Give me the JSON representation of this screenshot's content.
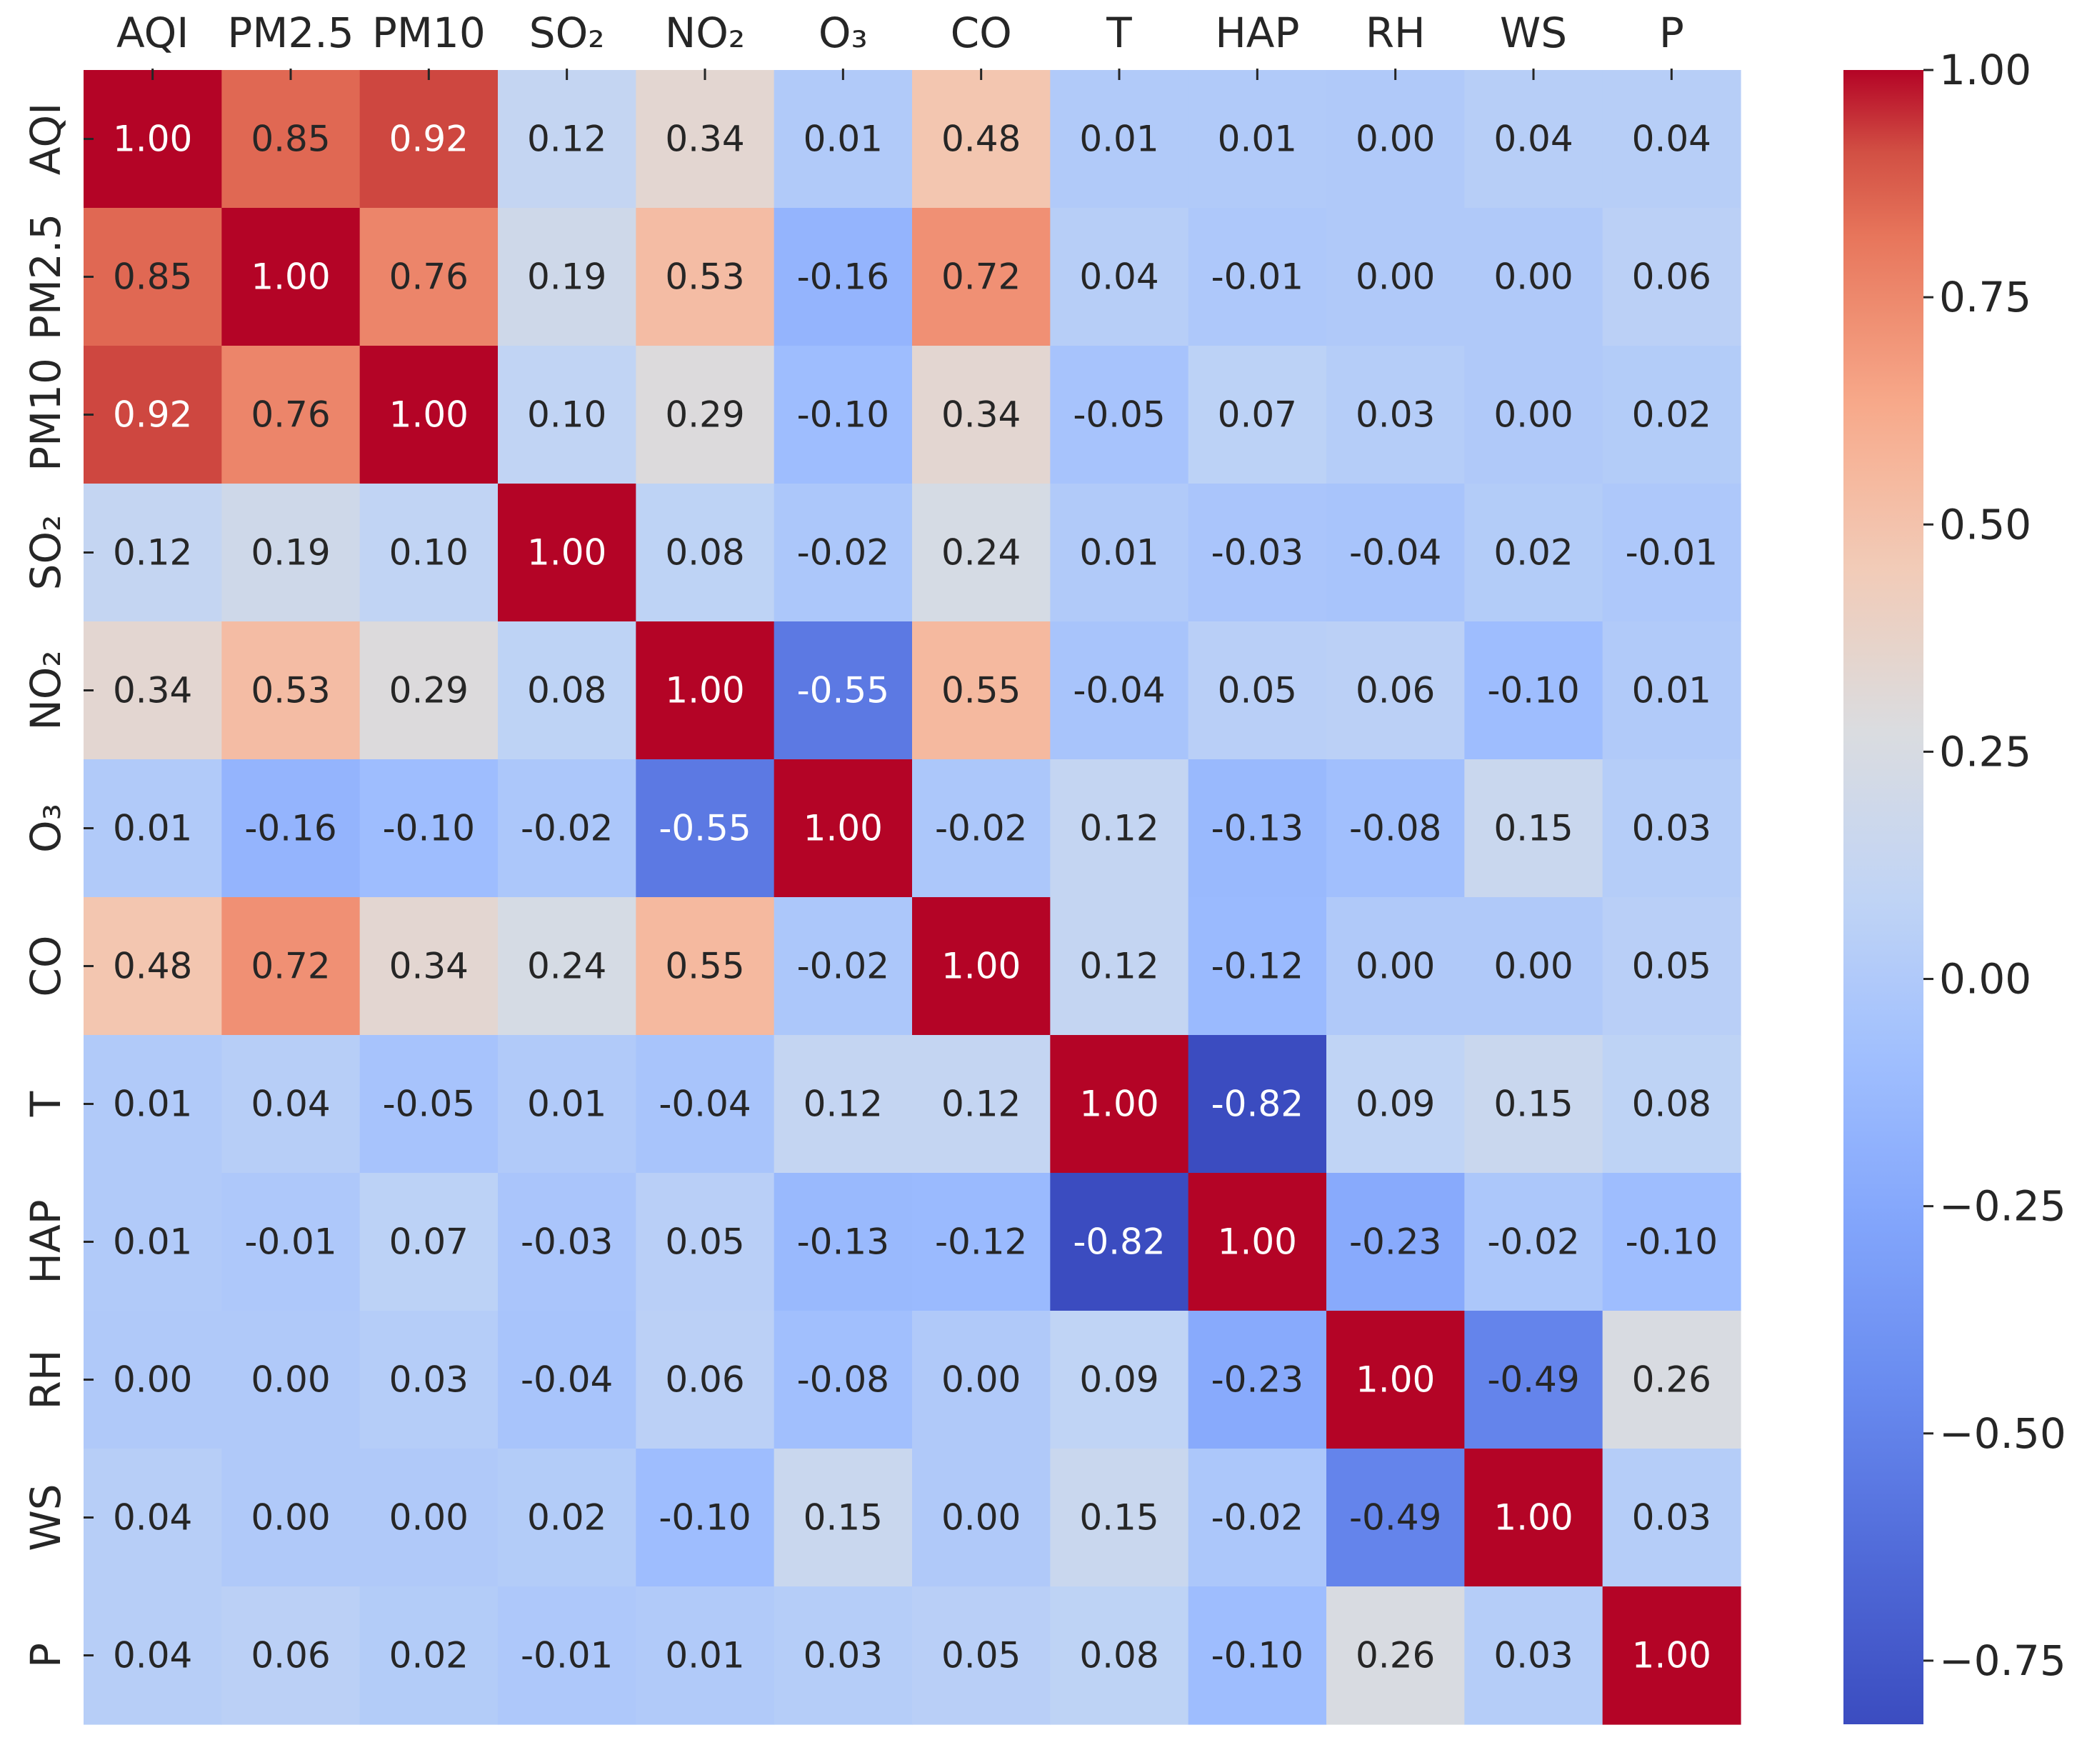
{
  "chart_data": {
    "type": "heatmap",
    "title": "",
    "xlabel": "",
    "ylabel": "",
    "labels": [
      "AQI",
      "PM2.5",
      "PM10",
      "SO₂",
      "NO₂",
      "O₃",
      "CO",
      "T",
      "HAP",
      "RH",
      "WS",
      "P"
    ],
    "matrix": [
      [
        1.0,
        0.85,
        0.92,
        0.12,
        0.34,
        0.01,
        0.48,
        0.01,
        0.01,
        0.0,
        0.04,
        0.04
      ],
      [
        0.85,
        1.0,
        0.76,
        0.19,
        0.53,
        -0.16,
        0.72,
        0.04,
        -0.01,
        0.0,
        0.0,
        0.06
      ],
      [
        0.92,
        0.76,
        1.0,
        0.1,
        0.29,
        -0.1,
        0.34,
        -0.05,
        0.07,
        0.03,
        0.0,
        0.02
      ],
      [
        0.12,
        0.19,
        0.1,
        1.0,
        0.08,
        -0.02,
        0.24,
        0.01,
        -0.03,
        -0.04,
        0.02,
        -0.01
      ],
      [
        0.34,
        0.53,
        0.29,
        0.08,
        1.0,
        -0.55,
        0.55,
        -0.04,
        0.05,
        0.06,
        -0.1,
        0.01
      ],
      [
        0.01,
        -0.16,
        -0.1,
        -0.02,
        -0.55,
        1.0,
        -0.02,
        0.12,
        -0.13,
        -0.08,
        0.15,
        0.03
      ],
      [
        0.48,
        0.72,
        0.34,
        0.24,
        0.55,
        -0.02,
        1.0,
        0.12,
        -0.12,
        0.0,
        0.0,
        0.05
      ],
      [
        0.01,
        0.04,
        -0.05,
        0.01,
        -0.04,
        0.12,
        0.12,
        1.0,
        -0.82,
        0.09,
        0.15,
        0.08
      ],
      [
        0.01,
        -0.01,
        0.07,
        -0.03,
        0.05,
        -0.13,
        -0.12,
        -0.82,
        1.0,
        -0.23,
        -0.02,
        -0.1
      ],
      [
        0.0,
        0.0,
        0.03,
        -0.04,
        0.06,
        -0.08,
        0.0,
        0.09,
        -0.23,
        1.0,
        -0.49,
        0.26
      ],
      [
        0.04,
        0.0,
        0.0,
        0.02,
        -0.1,
        0.15,
        0.0,
        0.15,
        -0.02,
        -0.49,
        1.0,
        0.03
      ],
      [
        0.04,
        0.06,
        0.02,
        -0.01,
        0.01,
        0.03,
        0.05,
        0.08,
        -0.1,
        0.26,
        0.03,
        1.0
      ]
    ],
    "colormap": "coolwarm",
    "colorbar": {
      "range": [
        -0.82,
        1.0
      ],
      "ticks": [
        1.0,
        0.75,
        0.5,
        0.25,
        0.0,
        -0.25,
        -0.5,
        -0.75
      ],
      "tick_labels": [
        "1.00",
        "0.75",
        "0.50",
        "0.25",
        "0.00",
        "−0.25",
        "−0.50",
        "−0.75"
      ]
    },
    "grid": false,
    "legend": "colorbar-right",
    "annotations_format": "0.00"
  },
  "colors": {
    "text_dark": "#262626",
    "text_light": "#ffffff",
    "tick": "#262626"
  }
}
